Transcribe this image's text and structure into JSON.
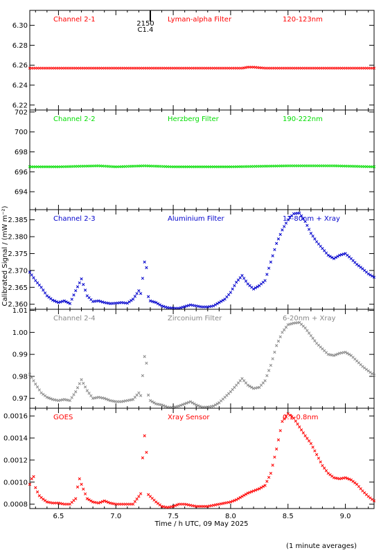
{
  "figure": {
    "ylabel": "Calibrated Signal / (mW m⁻²)",
    "xlabel": "Time / h UTC, 09 May 2025",
    "footnote": "(1 minute averages)",
    "event_marker": {
      "x": 7.3,
      "labels": [
        "2150",
        "C1.4"
      ]
    }
  },
  "chart_data": [
    {
      "type": "scatter",
      "panel": "Channel 2-1",
      "labels": [
        "Channel 2-1",
        "Lyman-alpha Filter",
        "120-123nm"
      ],
      "color": "#ff0000",
      "xlim": [
        6.25,
        9.25
      ],
      "ylim": [
        6.215,
        6.315
      ],
      "yticks": [
        "6.22",
        "6.24",
        "6.26",
        "6.28",
        "6.30"
      ],
      "yticks_num": [
        6.22,
        6.24,
        6.26,
        6.28,
        6.3
      ],
      "series": [
        {
          "x": [
            6.25,
            6.5,
            7.0,
            7.5,
            8.0,
            8.1,
            8.15,
            8.2,
            8.3,
            8.5,
            9.0,
            9.25
          ],
          "y": [
            6.257,
            6.257,
            6.257,
            6.257,
            6.257,
            6.257,
            6.258,
            6.258,
            6.257,
            6.257,
            6.257,
            6.257
          ]
        }
      ]
    },
    {
      "type": "scatter",
      "panel": "Channel 2-2",
      "labels": [
        "Channel 2-2",
        "Herzberg Filter",
        "190-222nm"
      ],
      "color": "#00dd00",
      "xlim": [
        6.25,
        9.25
      ],
      "ylim": [
        692.2,
        702.2
      ],
      "yticks": [
        "694",
        "696",
        "698",
        "700",
        "702"
      ],
      "yticks_num": [
        694,
        696,
        698,
        700,
        702
      ],
      "series": [
        {
          "x": [
            6.25,
            6.5,
            6.85,
            7.0,
            7.25,
            7.5,
            8.0,
            8.5,
            8.9,
            9.25
          ],
          "y": [
            696.5,
            696.5,
            696.6,
            696.5,
            696.6,
            696.5,
            696.5,
            696.6,
            696.6,
            696.5
          ]
        }
      ]
    },
    {
      "type": "scatter",
      "panel": "Channel 2-3",
      "labels": [
        "Channel 2-3",
        "Aluminium Filter",
        "17-80nm + Xray"
      ],
      "color": "#0000cc",
      "xlim": [
        6.25,
        9.25
      ],
      "ylim": [
        2.3585,
        2.388
      ],
      "yticks": [
        "2.360",
        "2.365",
        "2.370",
        "2.375",
        "2.380",
        "2.385"
      ],
      "yticks_num": [
        2.36,
        2.365,
        2.37,
        2.375,
        2.38,
        2.385
      ],
      "series": [
        {
          "x": [
            6.25,
            6.3,
            6.35,
            6.4,
            6.45,
            6.5,
            6.55,
            6.6,
            6.65,
            6.7,
            6.75,
            6.8,
            6.85,
            6.9,
            6.95,
            7.0,
            7.05,
            7.1,
            7.15,
            7.2,
            7.22,
            7.24,
            7.26,
            7.28,
            7.3,
            7.35,
            7.4,
            7.45,
            7.5,
            7.55,
            7.6,
            7.65,
            7.7,
            7.75,
            7.8,
            7.85,
            7.9,
            7.95,
            8.0,
            8.05,
            8.1,
            8.15,
            8.2,
            8.25,
            8.3,
            8.35,
            8.4,
            8.45,
            8.5,
            8.55,
            8.6,
            8.65,
            8.7,
            8.75,
            8.8,
            8.85,
            8.9,
            8.95,
            9.0,
            9.05,
            9.1,
            9.15,
            9.2,
            9.25
          ],
          "y": [
            2.3695,
            2.367,
            2.365,
            2.3625,
            2.3612,
            2.3605,
            2.361,
            2.3602,
            2.364,
            2.3675,
            2.3625,
            2.3608,
            2.361,
            2.3605,
            2.3602,
            2.3603,
            2.3605,
            2.3603,
            2.3615,
            2.364,
            2.363,
            2.37,
            2.375,
            2.3625,
            2.361,
            2.3605,
            2.3595,
            2.359,
            2.3588,
            2.3588,
            2.3593,
            2.3598,
            2.3595,
            2.3592,
            2.3592,
            2.3595,
            2.3605,
            2.3615,
            2.3635,
            2.3665,
            2.3685,
            2.366,
            2.3645,
            2.3655,
            2.367,
            2.3725,
            2.378,
            2.382,
            2.385,
            2.3868,
            2.387,
            2.3845,
            2.381,
            2.3785,
            2.3765,
            2.3745,
            2.3735,
            2.3745,
            2.375,
            2.3735,
            2.3718,
            2.3705,
            2.369,
            2.368
          ]
        }
      ]
    },
    {
      "type": "scatter",
      "panel": "Channel 2-4",
      "labels": [
        "Channel 2-4",
        "Zirconium Filter",
        "6-20nm + Xray"
      ],
      "color": "#888888",
      "xlim": [
        6.25,
        9.25
      ],
      "ylim": [
        0.9655,
        1.0105
      ],
      "yticks": [
        "0.97",
        "0.98",
        "0.99",
        "1.00",
        "1.01"
      ],
      "yticks_num": [
        0.97,
        0.98,
        0.99,
        1.0,
        1.01
      ],
      "series": [
        {
          "x": [
            6.25,
            6.3,
            6.35,
            6.4,
            6.45,
            6.5,
            6.55,
            6.6,
            6.65,
            6.7,
            6.75,
            6.8,
            6.85,
            6.9,
            6.95,
            7.0,
            7.05,
            7.1,
            7.15,
            7.2,
            7.22,
            7.24,
            7.26,
            7.28,
            7.3,
            7.35,
            7.4,
            7.45,
            7.5,
            7.55,
            7.6,
            7.65,
            7.7,
            7.75,
            7.8,
            7.85,
            7.9,
            7.95,
            8.0,
            8.05,
            8.1,
            8.15,
            8.2,
            8.25,
            8.3,
            8.35,
            8.4,
            8.45,
            8.5,
            8.55,
            8.6,
            8.65,
            8.7,
            8.75,
            8.8,
            8.85,
            8.9,
            8.95,
            9.0,
            9.05,
            9.1,
            9.15,
            9.2,
            9.25
          ],
          "y": [
            0.981,
            0.9765,
            0.9725,
            0.9705,
            0.9695,
            0.969,
            0.9695,
            0.969,
            0.973,
            0.9785,
            0.9735,
            0.97,
            0.9705,
            0.97,
            0.969,
            0.9685,
            0.9685,
            0.969,
            0.9695,
            0.9725,
            0.971,
            0.985,
            0.993,
            0.972,
            0.969,
            0.9675,
            0.967,
            0.966,
            0.9658,
            0.9665,
            0.9675,
            0.9685,
            0.967,
            0.966,
            0.966,
            0.9665,
            0.968,
            0.9705,
            0.973,
            0.976,
            0.979,
            0.976,
            0.9745,
            0.975,
            0.978,
            0.985,
            0.994,
            1.0,
            1.0035,
            1.0042,
            1.0045,
            1.002,
            0.9985,
            0.995,
            0.9925,
            0.99,
            0.9895,
            0.9905,
            0.991,
            0.9895,
            0.987,
            0.9845,
            0.9825,
            0.9805
          ]
        }
      ]
    },
    {
      "type": "scatter",
      "panel": "GOES",
      "labels": [
        "GOES",
        "Xray Sensor",
        "0.1-0.8nm"
      ],
      "color": "#ff0000",
      "xlim": [
        6.25,
        9.25
      ],
      "ylim": [
        0.00076,
        0.00167
      ],
      "yticks": [
        "0.0008",
        "0.0010",
        "0.0012",
        "0.0014",
        "0.0016"
      ],
      "yticks_num": [
        0.0008,
        0.001,
        0.0012,
        0.0014,
        0.0016
      ],
      "series": [
        {
          "x": [
            6.25,
            6.28,
            6.3,
            6.33,
            6.36,
            6.4,
            6.45,
            6.5,
            6.55,
            6.6,
            6.65,
            6.68,
            6.7,
            6.75,
            6.8,
            6.85,
            6.9,
            6.95,
            7.0,
            7.05,
            7.1,
            7.15,
            7.2,
            7.22,
            7.24,
            7.26,
            7.28,
            7.3,
            7.35,
            7.4,
            7.45,
            7.5,
            7.55,
            7.6,
            7.65,
            7.7,
            7.75,
            7.8,
            7.85,
            7.9,
            7.95,
            8.0,
            8.05,
            8.1,
            8.15,
            8.2,
            8.25,
            8.3,
            8.35,
            8.4,
            8.45,
            8.5,
            8.55,
            8.6,
            8.65,
            8.7,
            8.75,
            8.8,
            8.85,
            8.9,
            8.95,
            9.0,
            9.05,
            9.1,
            9.15,
            9.2,
            9.25
          ],
          "y": [
            0.00098,
            0.00107,
            0.00095,
            0.00088,
            0.00085,
            0.00082,
            0.00081,
            0.00081,
            0.0008,
            0.0008,
            0.00085,
            0.00104,
            0.00098,
            0.00085,
            0.00082,
            0.00081,
            0.00083,
            0.00081,
            0.0008,
            0.0008,
            0.0008,
            0.0008,
            0.00087,
            0.0009,
            0.00138,
            0.00146,
            0.00089,
            0.00087,
            0.00082,
            0.00078,
            0.00077,
            0.00078,
            0.0008,
            0.0008,
            0.00079,
            0.00078,
            0.00078,
            0.00078,
            0.00079,
            0.0008,
            0.00081,
            0.00082,
            0.00084,
            0.00087,
            0.0009,
            0.00092,
            0.00094,
            0.00097,
            0.00108,
            0.0013,
            0.00155,
            0.00162,
            0.00158,
            0.0015,
            0.00142,
            0.00135,
            0.00125,
            0.00115,
            0.00108,
            0.00104,
            0.00103,
            0.00104,
            0.00102,
            0.00098,
            0.00092,
            0.00087,
            0.00083
          ]
        }
      ]
    }
  ],
  "xaxis": {
    "ticks": [
      "6.5",
      "7.0",
      "7.5",
      "8.0",
      "8.5",
      "9.0"
    ],
    "ticks_num": [
      6.5,
      7.0,
      7.5,
      8.0,
      8.5,
      9.0
    ]
  }
}
